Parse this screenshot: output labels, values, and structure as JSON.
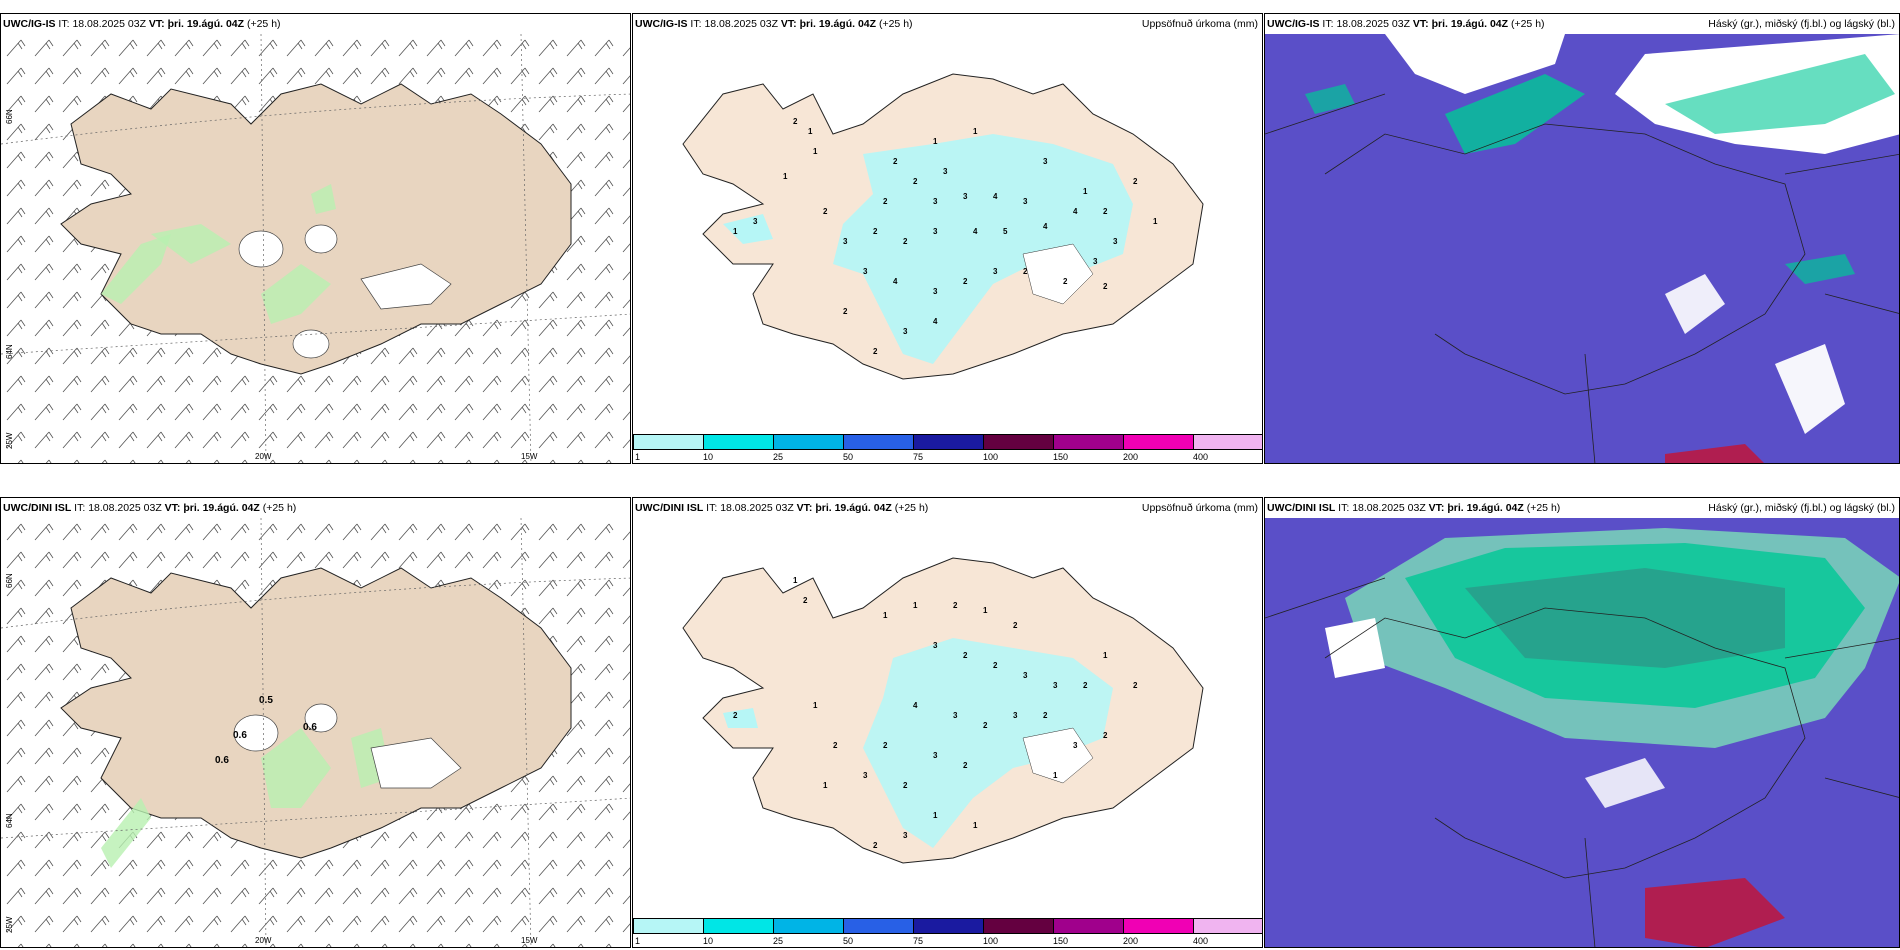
{
  "rows": [
    {
      "model": "UWC/IG-IS",
      "it_label": "IT:",
      "it_value": "18.08.2025 03Z",
      "vt_label": "VT:",
      "vt_value": "þri. 19.ágú. 04Z",
      "lead": "(+25 h)"
    },
    {
      "model": "UWC/DINI ISL",
      "it_label": "IT:",
      "it_value": "18.08.2025 03Z",
      "vt_label": "VT:",
      "vt_value": "þri. 19.ágú. 04Z",
      "lead": "(+25 h)"
    }
  ],
  "precip_title": "Uppsöfnuð úrkoma (mm)",
  "cloud_title": "Háský (gr.), miðský (fj.bl.) og lágský (bl.)",
  "axis_labels": {
    "lat66": "66N",
    "lat64": "64N",
    "lon25": "25W",
    "lon20": "20W",
    "lon15": "15W"
  },
  "colorbar": {
    "ticks": [
      "1",
      "10",
      "25",
      "50",
      "75",
      "100",
      "150",
      "200",
      "400"
    ],
    "colors": [
      "#b6f6f6",
      "#00e6e6",
      "#00b4e6",
      "#2860e6",
      "#1a1aa0",
      "#640040",
      "#a0008c",
      "#f000b4",
      "#f0b4f0"
    ]
  },
  "row2_wind_values": [
    "0.5",
    "0.6",
    "0.6",
    "0.6"
  ],
  "precip_numbers_row1": [
    "2",
    "1",
    "1",
    "1",
    "2",
    "1",
    "1",
    "3",
    "2",
    "2",
    "3",
    "3",
    "4",
    "3",
    "4",
    "5",
    "4",
    "3",
    "2",
    "2",
    "3",
    "3",
    "4",
    "3",
    "2",
    "3",
    "2",
    "4",
    "3",
    "2",
    "1",
    "2",
    "3",
    "4",
    "2",
    "3",
    "2",
    "1",
    "1",
    "3",
    "2",
    "2",
    "2",
    "3"
  ],
  "precip_numbers_row2": [
    "1",
    "2",
    "1",
    "1",
    "2",
    "1",
    "2",
    "3",
    "2",
    "2",
    "3",
    "3",
    "2",
    "4",
    "3",
    "2",
    "3",
    "2",
    "1",
    "3",
    "2",
    "2",
    "3",
    "2",
    "1",
    "2",
    "1",
    "1",
    "3",
    "2",
    "2",
    "1",
    "3",
    "2",
    "2",
    "1"
  ],
  "colors": {
    "land": "#f7e6d6",
    "land_wind": "#e8d5c0",
    "precip_light": "#b6f6f6",
    "cloud_bg": "#5a4fc8",
    "cloud_green": "#00c896",
    "cloud_red": "#b01e50"
  }
}
